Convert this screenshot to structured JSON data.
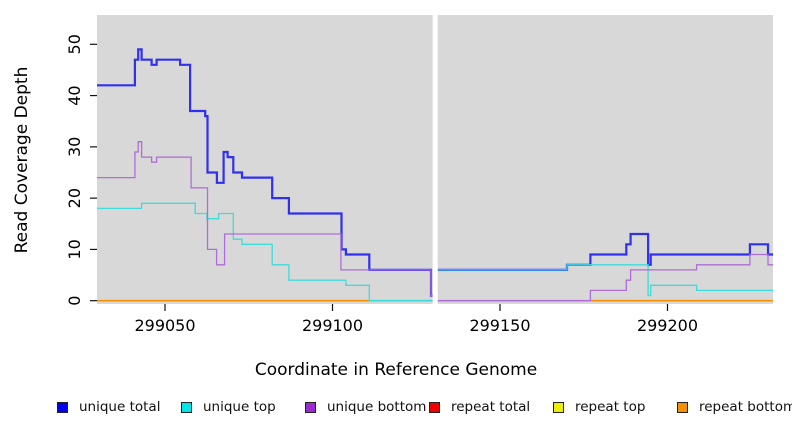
{
  "figure": {
    "x_axis_title": "Coordinate in Reference Genome",
    "y_axis_title": "Read Coverage Depth",
    "plot_background": "#d8d8d8",
    "page_background": "#ffffff",
    "tick_color": "#111111"
  },
  "chart_data": {
    "type": "line",
    "line_style": "step-after",
    "title": "",
    "xlabel": "Coordinate in Reference Genome",
    "ylabel": "Read Coverage Depth",
    "xlim": [
      299029.7,
      299231.5
    ],
    "ylim": [
      0,
      55.7
    ],
    "x_ticks": [
      299050,
      299100,
      299150,
      299200
    ],
    "y_ticks": [
      0,
      10,
      20,
      30,
      40,
      50
    ],
    "grid": false,
    "legend_position": "bottom",
    "no_data_gap_x": [
      299129.9,
      299131.4
    ],
    "series": [
      {
        "name": "repeat total",
        "color": "#e00000",
        "width": 1.2,
        "segments": [
          [
            [
              299029.7,
              0
            ],
            [
              299231.5,
              0
            ]
          ]
        ]
      },
      {
        "name": "repeat top",
        "color": "#e8e800",
        "width": 1.2,
        "segments": [
          [
            [
              299029.7,
              0
            ],
            [
              299231.5,
              0
            ]
          ]
        ]
      },
      {
        "name": "repeat bottom",
        "color": "#f59000",
        "width": 1.6,
        "segments": [
          [
            [
              299029.7,
              0
            ],
            [
              299231.5,
              0
            ]
          ]
        ]
      },
      {
        "name": "unique total",
        "color": "#3030ee",
        "width": 2.2,
        "segments": [
          [
            [
              299029.7,
              42
            ],
            [
              299041,
              47
            ],
            [
              299042,
              49
            ],
            [
              299043,
              47
            ],
            [
              299046,
              46
            ],
            [
              299047.5,
              47
            ],
            [
              299054.5,
              46
            ],
            [
              299057.5,
              37
            ],
            [
              299062,
              36
            ],
            [
              299062.7,
              25
            ],
            [
              299065.5,
              23
            ],
            [
              299067.5,
              29
            ],
            [
              299068.7,
              28
            ],
            [
              299070.4,
              25
            ],
            [
              299073,
              24
            ],
            [
              299082,
              20
            ],
            [
              299087,
              17
            ],
            [
              299102.7,
              10
            ],
            [
              299104,
              9
            ],
            [
              299111,
              6
            ],
            [
              299129.4,
              1
            ],
            [
              299129.9,
              1
            ]
          ],
          [
            [
              299131.4,
              6
            ],
            [
              299170,
              7
            ],
            [
              299177,
              9
            ],
            [
              299187.7,
              11
            ],
            [
              299189,
              13
            ],
            [
              299194.2,
              7
            ],
            [
              299195,
              9
            ],
            [
              299224.6,
              11
            ],
            [
              299230,
              9
            ],
            [
              299231.5,
              9
            ]
          ]
        ]
      },
      {
        "name": "unique top",
        "color": "#3ddcdc",
        "width": 1.3,
        "segments": [
          [
            [
              299029.7,
              18
            ],
            [
              299043,
              19
            ],
            [
              299059,
              17
            ],
            [
              299062.5,
              16
            ],
            [
              299066,
              17
            ],
            [
              299070.4,
              12
            ],
            [
              299073,
              11
            ],
            [
              299082,
              7
            ],
            [
              299087,
              4
            ],
            [
              299104,
              3
            ],
            [
              299111,
              0
            ],
            [
              299129.9,
              0
            ]
          ],
          [
            [
              299131.4,
              6
            ],
            [
              299170,
              7
            ],
            [
              299194.2,
              1
            ],
            [
              299195,
              3
            ],
            [
              299208.7,
              2
            ],
            [
              299231.5,
              2
            ]
          ]
        ]
      },
      {
        "name": "unique bottom",
        "color": "#b06cd8",
        "width": 1.3,
        "segments": [
          [
            [
              299029.7,
              24
            ],
            [
              299041,
              29
            ],
            [
              299042,
              31
            ],
            [
              299043,
              28
            ],
            [
              299046,
              27
            ],
            [
              299047.5,
              28
            ],
            [
              299057.8,
              22
            ],
            [
              299062.7,
              10
            ],
            [
              299065.4,
              7
            ],
            [
              299067.8,
              13
            ],
            [
              299102.5,
              6
            ],
            [
              299129.4,
              1
            ],
            [
              299129.9,
              1
            ]
          ],
          [
            [
              299131.4,
              0
            ],
            [
              299177,
              2
            ],
            [
              299187.7,
              4
            ],
            [
              299189,
              6
            ],
            [
              299208.7,
              7
            ],
            [
              299224.6,
              9
            ],
            [
              299230,
              7
            ],
            [
              299231.5,
              7
            ]
          ]
        ]
      }
    ]
  },
  "legend": {
    "items": [
      {
        "label": "unique total",
        "color": "#0000ee"
      },
      {
        "label": "unique top",
        "color": "#00e5e5"
      },
      {
        "label": "unique bottom",
        "color": "#9a2bd0"
      },
      {
        "label": "repeat total",
        "color": "#ee0000"
      },
      {
        "label": "repeat top",
        "color": "#eeee00"
      },
      {
        "label": "repeat bottom",
        "color": "#f59000"
      }
    ]
  }
}
